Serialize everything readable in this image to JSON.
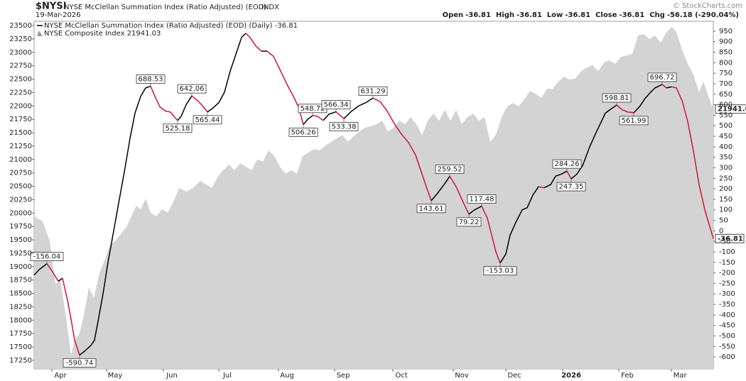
{
  "header": {
    "symbol": "$NYSI",
    "description": "NYSE McClellan Summation Index (Ratio Adjusted) (EOD)",
    "exchange": "INDX",
    "date": "19-Mar-2026",
    "copyright": "© StockCharts.com",
    "quote": [
      "Open",
      "-36.81",
      "High",
      "-36.81",
      "Low",
      "-36.81",
      "Close",
      "-36.81",
      "Chg",
      "-56.18 (-290.04%)"
    ]
  },
  "chart_data": {
    "type": "line",
    "xlim": [
      0,
      239
    ],
    "xticks": [
      {
        "value": 6.25,
        "label": "Apr"
      },
      {
        "value": 25.5,
        "label": "May"
      },
      {
        "value": 45.5,
        "label": "Jun"
      },
      {
        "value": 65,
        "label": "Jul"
      },
      {
        "value": 86,
        "label": "Aug"
      },
      {
        "value": 105.75,
        "label": "Sep"
      },
      {
        "value": 126.25,
        "label": "Oct"
      },
      {
        "value": 147.5,
        "label": "Nov"
      },
      {
        "value": 166,
        "label": "Dec"
      },
      {
        "value": 186,
        "label": "2026"
      },
      {
        "value": 205.75,
        "label": "Feb"
      },
      {
        "value": 224.25,
        "label": "Mar"
      }
    ],
    "ylim": [
      17090,
      23580
    ],
    "yticks": [
      17250,
      17500,
      17750,
      18000,
      18250,
      18500,
      18750,
      19000,
      19250,
      19500,
      19750,
      20000,
      20250,
      20500,
      20750,
      21000,
      21250,
      21500,
      21750,
      22000,
      22250,
      22500,
      22750,
      23000,
      23250,
      23500
    ],
    "y2lim": [
      -657,
      997
    ],
    "y2ticks": [
      -600,
      -550,
      -500,
      -450,
      -400,
      -350,
      -300,
      -250,
      -200,
      -150,
      -100,
      -50,
      0,
      50,
      100,
      150,
      200,
      250,
      300,
      350,
      400,
      450,
      500,
      550,
      600,
      650,
      700,
      750,
      800,
      850,
      900,
      950
    ],
    "grid": false,
    "series": [
      {
        "name": "NYSE McClellan Summation Index (Ratio Adjusted) (EOD) (Daily) -36.81",
        "type": "line",
        "axis": "y2",
        "color": "#000000",
        "down_color": "#d0123c",
        "x": [
          0,
          1.75,
          4.5,
          6.75,
          8.5,
          10,
          11.75,
          13,
          14.25,
          16,
          18,
          20,
          21.25,
          22.5,
          24.25,
          26,
          28,
          30,
          32,
          33.75,
          35.5,
          37.5,
          39.25,
          41,
          42.5,
          44.25,
          46.25,
          48,
          49.5,
          50.5,
          51.75,
          53.5,
          55.5,
          57.5,
          59.25,
          61,
          63,
          65,
          67,
          69,
          71,
          73,
          74.5,
          76,
          78,
          80,
          82,
          84.25,
          86.75,
          89.25,
          91.25,
          93,
          94.75,
          96.25,
          98,
          99.75,
          101.75,
          103.75,
          106.25,
          109,
          111.75,
          114.25,
          116.75,
          119.25,
          121.75,
          124.25,
          126.75,
          129.25,
          131.75,
          134.25,
          136,
          138,
          139.75,
          141.75,
          144.25,
          146.25,
          148.5,
          150.5,
          153,
          155,
          157.5,
          159.5,
          161,
          162.5,
          164,
          166,
          167.5,
          169.5,
          171.75,
          173.5,
          175.5,
          177.5,
          179.5,
          181.75,
          183.5,
          185.5,
          187.5,
          189,
          191,
          193,
          195.5,
          197.5,
          199.25,
          201,
          203,
          205,
          207,
          209,
          211,
          213,
          215,
          217,
          218.5,
          221,
          222.5,
          224.25,
          226,
          228,
          230,
          232,
          234,
          236,
          239
        ],
        "values": [
          -210,
          -185,
          -156.04,
          -200,
          -240,
          -225,
          -330,
          -420,
          -520,
          -590.74,
          -570,
          -545,
          -520,
          -430,
          -300,
          -150,
          0,
          150,
          300,
          440,
          560,
          640,
          680,
          688.53,
          640,
          590,
          570,
          565,
          540,
          525.18,
          545,
          600,
          642.06,
          620,
          595,
          565.44,
          585,
          610,
          660,
          760,
          840,
          920,
          940,
          920,
          880,
          855,
          855,
          830,
          760,
          690,
          640,
          590,
          506.26,
          530,
          548.72,
          545,
          525,
          555,
          566.34,
          533.38,
          570,
          595,
          610,
          631.29,
          615,
          570,
          510,
          460,
          420,
          360,
          290,
          210,
          143.61,
          175,
          220,
          259.52,
          210,
          150,
          79.22,
          100,
          117.48,
          60,
          -20,
          -100,
          -153.03,
          -110,
          -20,
          40,
          100,
          110,
          170,
          210,
          205,
          220,
          260,
          270,
          284.26,
          247.35,
          270,
          310,
          400,
          460,
          510,
          560,
          580,
          598.81,
          575,
          565,
          561.99,
          590,
          630,
          660,
          680,
          696.72,
          680,
          685,
          680,
          620,
          520,
          380,
          220,
          100,
          -36.81
        ],
        "labels_at": [
          2,
          9,
          23,
          29,
          32,
          35,
          52,
          54,
          58,
          59,
          63,
          72,
          75,
          78,
          80,
          84,
          96,
          97,
          105,
          108,
          113
        ]
      },
      {
        "name": "NYSE Composite Index 21941.03",
        "type": "area",
        "axis": "y",
        "color": "#d3d3d3",
        "last_label": "21941.0",
        "x": [
          0,
          3,
          5.5,
          7.5,
          9.25,
          11,
          13,
          14.25,
          16,
          17.5,
          19.25,
          21,
          23,
          25,
          26.75,
          28.5,
          30.5,
          32.5,
          34.25,
          36,
          37.5,
          39.25,
          41,
          43,
          45,
          47,
          49,
          51,
          53.5,
          56,
          58.5,
          60.5,
          62.5,
          64.5,
          66.5,
          68.5,
          70.5,
          72.5,
          74.5,
          76.5,
          78.5,
          80.5,
          82.5,
          84.5,
          86.5,
          88.5,
          90.5,
          92.5,
          94.5,
          96.5,
          98.5,
          100.5,
          102.5,
          104.5,
          106.5,
          108.5,
          110.5,
          112.5,
          114.5,
          116.5,
          118.5,
          120.5,
          122.5,
          124.5,
          126.5,
          128.5,
          130.5,
          132.5,
          134.5,
          136.5,
          138.5,
          140.5,
          142.5,
          144.5,
          146.5,
          148.5,
          150.5,
          152.5,
          154.5,
          156.5,
          158.5,
          160.5,
          162.5,
          164.5,
          166.5,
          168.5,
          170.5,
          172.5,
          174.5,
          176.5,
          178.5,
          180.5,
          182.5,
          184.5,
          186.5,
          188.5,
          190.5,
          192.5,
          194.5,
          196.5,
          198.5,
          200.5,
          202.5,
          204.5,
          206.5,
          208.5,
          210.5,
          212.5,
          214.5,
          216.5,
          218.5,
          220.5,
          222.5,
          224.5,
          226,
          228,
          230,
          232,
          234,
          235.5,
          237.5,
          239
        ],
        "values": [
          19940,
          19845,
          19475,
          18680,
          18745,
          18150,
          17355,
          17620,
          17755,
          18085,
          18615,
          18415,
          18880,
          19145,
          19410,
          19475,
          19610,
          19740,
          19940,
          20140,
          20070,
          20270,
          20005,
          19940,
          20070,
          20005,
          20205,
          20470,
          20400,
          20470,
          20600,
          20535,
          20470,
          20665,
          20800,
          20905,
          20800,
          20930,
          20865,
          20800,
          21000,
          20960,
          21170,
          21065,
          20865,
          20735,
          20800,
          20735,
          21065,
          21130,
          21195,
          21170,
          21260,
          21330,
          21395,
          21460,
          21330,
          21435,
          21525,
          21595,
          21620,
          21660,
          21725,
          21525,
          21595,
          21725,
          21660,
          21790,
          21660,
          21460,
          21725,
          21860,
          21725,
          21925,
          21725,
          21925,
          21660,
          21790,
          21860,
          21725,
          21790,
          21330,
          21460,
          21790,
          21990,
          22055,
          21990,
          22125,
          22280,
          22225,
          22150,
          22320,
          22320,
          22455,
          22545,
          22490,
          22515,
          22650,
          22715,
          22760,
          22650,
          22810,
          22850,
          22785,
          22915,
          22940,
          22970,
          23315,
          23340,
          23250,
          23315,
          23180,
          23380,
          23475,
          23380,
          23050,
          22785,
          22585,
          22255,
          22455,
          22150,
          21941.03
        ]
      }
    ]
  }
}
